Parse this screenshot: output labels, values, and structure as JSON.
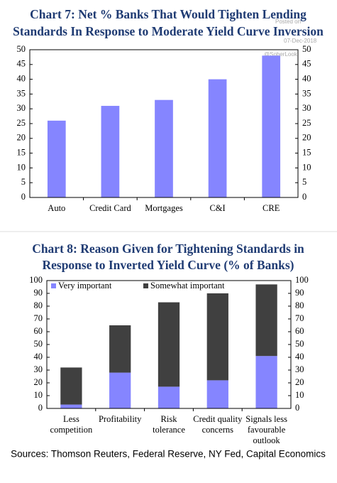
{
  "chart_data": [
    {
      "type": "bar",
      "title": "Chart 7: Net % Banks That Would Tighten Lending\nStandards In Response to Moderate Yield Curve Inversion",
      "annotations": [
        "Posted on",
        "07-Dec-2018",
        "@SoberLook"
      ],
      "categories": [
        "Auto",
        "Credit Card",
        "Mortgages",
        "C&I",
        "CRE"
      ],
      "values": [
        26,
        31,
        33,
        40,
        48
      ],
      "color": "#8585ff",
      "ylim": [
        0,
        50
      ],
      "yticks": [
        0,
        5,
        10,
        15,
        20,
        25,
        30,
        35,
        40,
        45,
        50
      ],
      "y2lim": [
        0,
        50
      ],
      "y2ticks": [
        0,
        5,
        10,
        15,
        20,
        25,
        30,
        35,
        40,
        45,
        50
      ],
      "grid": false
    },
    {
      "type": "stacked_bar",
      "title": "Chart 8: Reason Given for Tightening Standards in\nResponse to Inverted Yield Curve (% of Banks)",
      "categories": [
        "Less\ncompetition",
        "Profitability",
        "Risk\ntolerance",
        "Credit quality\nconcerns",
        "Signals less\nfavourable\noutlook"
      ],
      "series": [
        {
          "name": "Very important",
          "color": "#8585ff",
          "values": [
            3,
            28,
            17,
            22,
            41
          ]
        },
        {
          "name": "Somewhat important",
          "color": "#404040",
          "values": [
            29,
            37,
            66,
            68,
            56
          ]
        }
      ],
      "legend": "upper left",
      "ylim": [
        0,
        100
      ],
      "yticks": [
        0,
        10,
        20,
        30,
        40,
        50,
        60,
        70,
        80,
        90,
        100
      ],
      "y2lim": [
        0,
        100
      ],
      "y2ticks": [
        0,
        10,
        20,
        30,
        40,
        50,
        60,
        70,
        80,
        90,
        100
      ],
      "grid": false,
      "source": "Sources: Thomson Reuters, Federal Reserve, NY Fed, Capital Economics"
    }
  ]
}
